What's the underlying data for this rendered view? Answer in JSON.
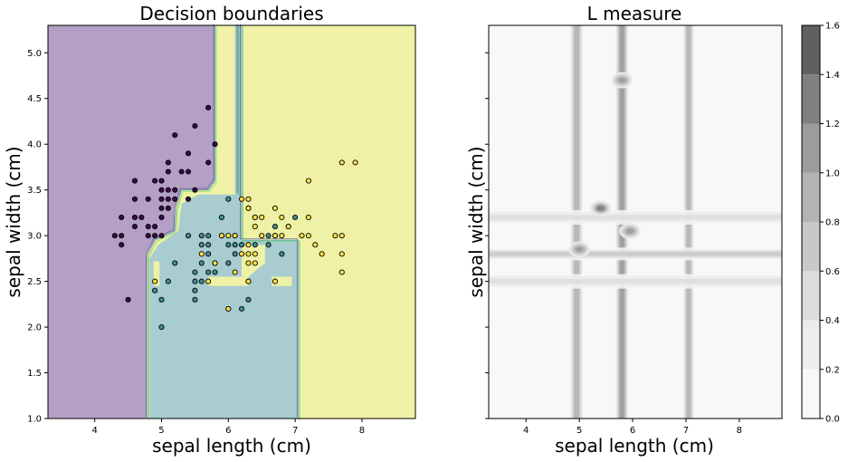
{
  "chart_data": [
    {
      "type": "contour",
      "title": "Decision boundaries",
      "xlabel": "sepal length (cm)",
      "ylabel": "sepal width (cm)",
      "xlim": [
        3.3,
        8.8
      ],
      "ylim": [
        1.0,
        5.3
      ],
      "xticks": [
        "4",
        "5",
        "6",
        "7",
        "8"
      ],
      "yticks": [
        "1.0",
        "1.5",
        "2.0",
        "2.5",
        "3.0",
        "3.5",
        "4.0",
        "4.5",
        "5.0"
      ],
      "region_colors": [
        "#b3a0c4",
        "#a8cccf",
        "#eff2a6"
      ],
      "point_colors": [
        "#3b0a4a",
        "#3e8f94",
        "#fde047"
      ],
      "series": [
        {
          "class": 0,
          "points": [
            [
              4.3,
              3.0
            ],
            [
              4.4,
              2.9
            ],
            [
              4.4,
              3.0
            ],
            [
              4.4,
              3.2
            ],
            [
              4.5,
              2.3
            ],
            [
              4.6,
              3.1
            ],
            [
              4.6,
              3.2
            ],
            [
              4.6,
              3.4
            ],
            [
              4.6,
              3.6
            ],
            [
              4.7,
              3.2
            ],
            [
              4.8,
              3.0
            ],
            [
              4.8,
              3.1
            ],
            [
              4.8,
              3.4
            ],
            [
              4.9,
              3.0
            ],
            [
              4.9,
              3.1
            ],
            [
              4.9,
              3.6
            ],
            [
              5.0,
              3.0
            ],
            [
              5.0,
              3.2
            ],
            [
              5.0,
              3.3
            ],
            [
              5.0,
              3.4
            ],
            [
              5.0,
              3.5
            ],
            [
              5.0,
              3.6
            ],
            [
              5.1,
              3.3
            ],
            [
              5.1,
              3.4
            ],
            [
              5.1,
              3.5
            ],
            [
              5.1,
              3.7
            ],
            [
              5.1,
              3.8
            ],
            [
              5.2,
              3.4
            ],
            [
              5.2,
              3.5
            ],
            [
              5.2,
              4.1
            ],
            [
              5.3,
              3.7
            ],
            [
              5.4,
              3.4
            ],
            [
              5.4,
              3.7
            ],
            [
              5.4,
              3.9
            ],
            [
              5.5,
              3.5
            ],
            [
              5.5,
              4.2
            ],
            [
              5.7,
              3.8
            ],
            [
              5.7,
              4.4
            ],
            [
              5.8,
              4.0
            ]
          ]
        },
        {
          "class": 1,
          "points": [
            [
              4.9,
              2.4
            ],
            [
              5.0,
              2.0
            ],
            [
              5.0,
              2.3
            ],
            [
              5.1,
              2.5
            ],
            [
              5.2,
              2.7
            ],
            [
              5.4,
              3.0
            ],
            [
              5.5,
              2.3
            ],
            [
              5.5,
              2.4
            ],
            [
              5.5,
              2.5
            ],
            [
              5.5,
              2.6
            ],
            [
              5.6,
              2.5
            ],
            [
              5.6,
              2.7
            ],
            [
              5.6,
              2.9
            ],
            [
              5.6,
              3.0
            ],
            [
              5.7,
              2.6
            ],
            [
              5.7,
              2.8
            ],
            [
              5.7,
              2.9
            ],
            [
              5.7,
              3.0
            ],
            [
              5.8,
              2.6
            ],
            [
              5.8,
              2.7
            ],
            [
              5.9,
              3.0
            ],
            [
              5.9,
              3.2
            ],
            [
              6.0,
              2.2
            ],
            [
              6.0,
              2.7
            ],
            [
              6.0,
              2.9
            ],
            [
              6.0,
              3.4
            ],
            [
              6.1,
              2.8
            ],
            [
              6.1,
              2.9
            ],
            [
              6.1,
              3.0
            ],
            [
              6.2,
              2.2
            ],
            [
              6.2,
              2.9
            ],
            [
              6.3,
              2.3
            ],
            [
              6.3,
              2.5
            ],
            [
              6.3,
              3.3
            ],
            [
              6.4,
              2.9
            ],
            [
              6.4,
              3.2
            ],
            [
              6.6,
              2.9
            ],
            [
              6.6,
              3.0
            ],
            [
              6.7,
              3.0
            ],
            [
              6.7,
              3.1
            ],
            [
              6.8,
              2.8
            ],
            [
              6.9,
              3.1
            ],
            [
              7.0,
              3.2
            ]
          ]
        },
        {
          "class": 2,
          "points": [
            [
              4.9,
              2.5
            ],
            [
              5.6,
              2.8
            ],
            [
              5.7,
              2.5
            ],
            [
              5.8,
              2.7
            ],
            [
              5.9,
              3.0
            ],
            [
              6.0,
              2.2
            ],
            [
              6.0,
              3.0
            ],
            [
              6.1,
              2.6
            ],
            [
              6.1,
              3.0
            ],
            [
              6.2,
              2.8
            ],
            [
              6.2,
              3.4
            ],
            [
              6.3,
              2.5
            ],
            [
              6.3,
              2.7
            ],
            [
              6.3,
              2.8
            ],
            [
              6.3,
              2.9
            ],
            [
              6.3,
              3.3
            ],
            [
              6.3,
              3.4
            ],
            [
              6.4,
              2.7
            ],
            [
              6.4,
              2.8
            ],
            [
              6.4,
              3.1
            ],
            [
              6.4,
              3.2
            ],
            [
              6.5,
              3.0
            ],
            [
              6.5,
              3.2
            ],
            [
              6.7,
              2.5
            ],
            [
              6.7,
              3.0
            ],
            [
              6.7,
              3.3
            ],
            [
              6.8,
              3.0
            ],
            [
              6.8,
              3.2
            ],
            [
              6.9,
              3.1
            ],
            [
              7.1,
              3.0
            ],
            [
              7.2,
              3.0
            ],
            [
              7.2,
              3.2
            ],
            [
              7.2,
              3.6
            ],
            [
              7.3,
              2.9
            ],
            [
              7.4,
              2.8
            ],
            [
              7.6,
              3.0
            ],
            [
              7.7,
              2.6
            ],
            [
              7.7,
              2.8
            ],
            [
              7.7,
              3.0
            ],
            [
              7.7,
              3.8
            ],
            [
              7.9,
              3.8
            ]
          ]
        }
      ]
    },
    {
      "type": "heatmap",
      "title": "L measure",
      "xlabel": "sepal length (cm)",
      "ylabel": "sepal width (cm)",
      "xlim": [
        3.3,
        8.8
      ],
      "ylim": [
        1.0,
        5.3
      ],
      "xticks": [
        "4",
        "5",
        "6",
        "7",
        "8"
      ],
      "colorbar": {
        "ticks": [
          "0.0",
          "0.2",
          "0.4",
          "0.6",
          "0.8",
          "1.0",
          "1.2",
          "1.4",
          "1.6"
        ],
        "levels": [
          0.0,
          0.2,
          0.4,
          0.6,
          0.8,
          1.0,
          1.2,
          1.4,
          1.6
        ],
        "colors": [
          "#f8f8f8",
          "#ececec",
          "#dcdcdc",
          "#c8c8c8",
          "#b4b4b4",
          "#9c9c9c",
          "#808080",
          "#606060",
          "#404040"
        ]
      },
      "vertical_bands": [
        {
          "x": 4.95,
          "width": 0.14,
          "value": 0.9
        },
        {
          "x": 5.8,
          "width": 0.12,
          "value": 1.0
        },
        {
          "x": 7.05,
          "width": 0.12,
          "value": 0.8
        }
      ],
      "horizontal_bands": [
        {
          "y": 2.8,
          "height": 0.07,
          "value": 0.7
        },
        {
          "y": 3.2,
          "height": 0.08,
          "value": 0.4
        },
        {
          "y": 2.5,
          "height": 0.08,
          "value": 0.4
        }
      ],
      "hotspots": [
        {
          "x": 5.4,
          "y": 3.3,
          "value": 1.3
        },
        {
          "x": 5.0,
          "y": 2.85,
          "value": 1.1
        },
        {
          "x": 5.8,
          "y": 4.7,
          "value": 1.0
        },
        {
          "x": 5.95,
          "y": 3.05,
          "value": 1.1
        }
      ]
    }
  ]
}
